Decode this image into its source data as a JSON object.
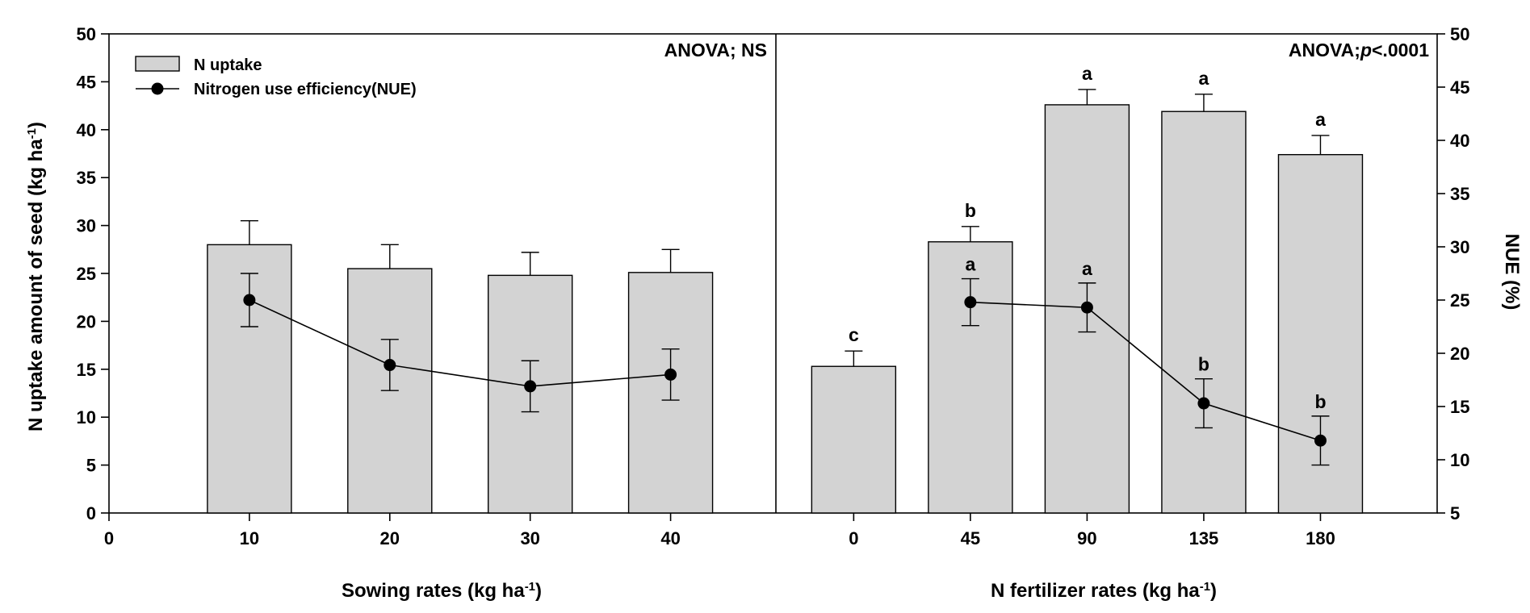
{
  "chart_data": {
    "type": "bar",
    "left_axis": {
      "label_main": "N uptake amount of seed (kg ha",
      "label_sup": "-1",
      "label_end": ")",
      "ylim": [
        0,
        50
      ],
      "ticks": [
        0,
        5,
        10,
        15,
        20,
        25,
        30,
        35,
        40,
        45,
        50
      ]
    },
    "right_axis": {
      "label": "NUE (%)",
      "ylim": [
        5,
        50
      ],
      "ticks": [
        5,
        10,
        15,
        20,
        25,
        30,
        35,
        40,
        45,
        50
      ]
    },
    "legend": {
      "placement": "top-left",
      "entries": [
        {
          "name": "N uptake",
          "kind": "bar"
        },
        {
          "name": "Nitrogen use efficiency(NUE)",
          "kind": "line-marker"
        }
      ]
    },
    "panels": [
      {
        "xlabel_main": "Sowing rates (kg ha",
        "xlabel_sup": "-1",
        "xlabel_end": ")",
        "anova_text": "ANOVA; NS",
        "anova_italic": "",
        "anova_suffix": "",
        "xlim": [
          0,
          47.5
        ],
        "tick_values": [
          0,
          10,
          20,
          30,
          40
        ],
        "tick_labels": [
          "0",
          "10",
          "20",
          "30",
          "40"
        ],
        "categories": [
          "10",
          "20",
          "30",
          "40"
        ],
        "x": [
          10,
          20,
          30,
          40
        ],
        "n_uptake": [
          28.0,
          25.5,
          24.8,
          25.1
        ],
        "n_uptake_err": [
          2.5,
          2.5,
          2.4,
          2.4
        ],
        "n_uptake_sig": [
          "",
          "",
          "",
          ""
        ],
        "nue": [
          25.0,
          18.9,
          16.9,
          18.0
        ],
        "nue_err": [
          2.5,
          2.4,
          2.4,
          2.4
        ],
        "nue_sig": [
          "",
          "",
          "",
          ""
        ]
      },
      {
        "xlabel_main": "N fertilizer rates (kg ha",
        "xlabel_sup": "-1",
        "xlabel_end": ")",
        "anova_text": "ANOVA;",
        "anova_italic": "p",
        "anova_suffix": "<.0001",
        "xlim": [
          -30,
          225
        ],
        "tick_values": [
          0,
          45,
          90,
          135,
          180
        ],
        "tick_labels": [
          "0",
          "45",
          "90",
          "135",
          "180"
        ],
        "categories": [
          "0",
          "45",
          "90",
          "135",
          "180"
        ],
        "x": [
          0,
          45,
          90,
          135,
          180
        ],
        "n_uptake": [
          15.3,
          28.3,
          42.6,
          41.9,
          37.4
        ],
        "n_uptake_err": [
          1.6,
          1.6,
          1.6,
          1.8,
          2.0
        ],
        "n_uptake_sig": [
          "c",
          "b",
          "a",
          "a",
          "a"
        ],
        "nue": [
          null,
          24.8,
          24.3,
          15.3,
          11.8
        ],
        "nue_err": [
          null,
          2.2,
          2.3,
          2.3,
          2.3
        ],
        "nue_sig": [
          "",
          "a",
          "a",
          "b",
          "b"
        ]
      }
    ]
  }
}
